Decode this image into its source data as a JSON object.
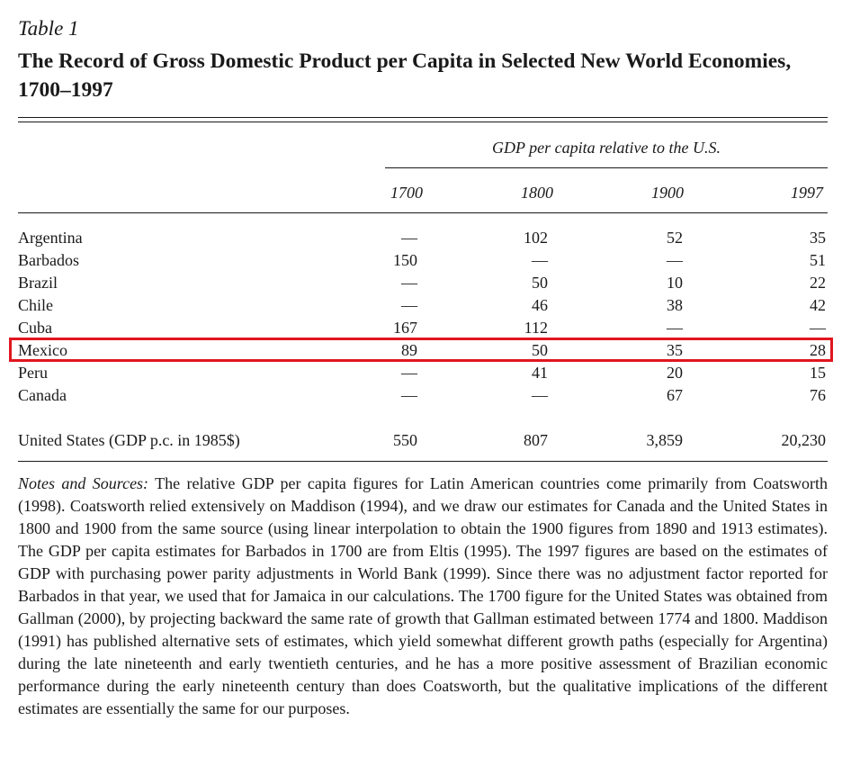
{
  "table": {
    "label": "Table 1",
    "title": "The Record of Gross Domestic Product per Capita in Selected New World Economies, 1700–1997",
    "span_header": "GDP per capita relative to the U.S.",
    "columns": [
      "1700",
      "1800",
      "1900",
      "1997"
    ],
    "rows": [
      {
        "name": "Argentina",
        "values": [
          "—",
          "102",
          "52",
          "35"
        ]
      },
      {
        "name": "Barbados",
        "values": [
          "150",
          "—",
          "—",
          "51"
        ]
      },
      {
        "name": "Brazil",
        "values": [
          "—",
          "50",
          "10",
          "22"
        ]
      },
      {
        "name": "Chile",
        "values": [
          "—",
          "46",
          "38",
          "42"
        ]
      },
      {
        "name": "Cuba",
        "values": [
          "167",
          "112",
          "—",
          "—"
        ]
      },
      {
        "name": "Mexico",
        "values": [
          "89",
          "50",
          "35",
          "28"
        ]
      },
      {
        "name": "Peru",
        "values": [
          "—",
          "41",
          "20",
          "15"
        ]
      },
      {
        "name": "Canada",
        "values": [
          "—",
          "—",
          "67",
          "76"
        ]
      }
    ],
    "us_row": {
      "name": "United States (GDP p.c. in 1985$)",
      "values": [
        "550",
        "807",
        "3,859",
        "20,230"
      ]
    },
    "highlight_color": "#e0161f"
  },
  "notes": {
    "lead": "Notes and Sources:",
    "body": " The relative GDP per capita figures for Latin American countries come primarily from Coatsworth (1998). Coatsworth relied extensively on Maddison (1994), and we draw our estimates for Canada and the United States in 1800 and 1900 from the same source (using linear interpolation to obtain the 1900 figures from 1890 and 1913 estimates). The GDP per capita estimates for Barbados in 1700 are from Eltis (1995). The 1997 figures are based on the estimates of GDP with purchasing power parity adjustments in World Bank (1999). Since there was no adjustment factor reported for Barbados in that year, we used that for Jamaica in our calculations. The 1700 figure for the United States was obtained from Gallman (2000), by projecting backward the same rate of growth that Gallman estimated between 1774 and 1800. Maddison (1991) has published alternative sets of estimates, which yield somewhat different growth paths (especially for Argentina) during the late nineteenth and early twentieth centuries, and he has a more positive assessment of Brazilian economic performance during the early nineteenth century than does Coatsworth, but the qualitative implications of the different estimates are essentially the same for our purposes."
  }
}
